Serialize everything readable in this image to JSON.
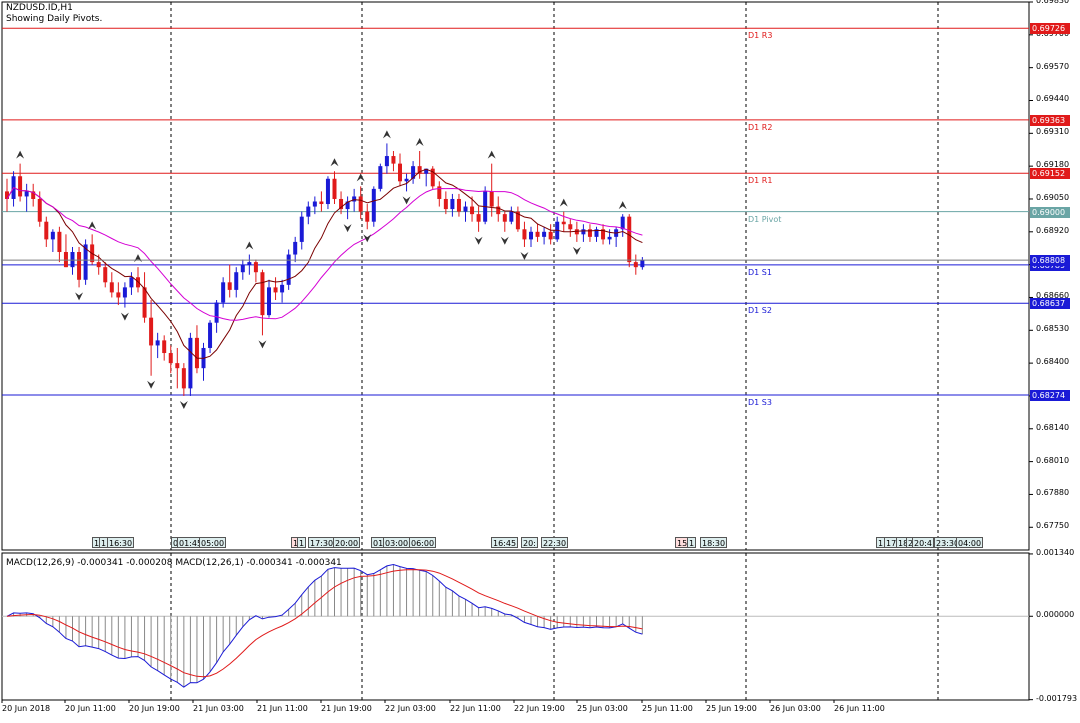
{
  "title": {
    "symbol": "NZDUSD.ID,H1",
    "subtitle": "Showing Daily Pivots."
  },
  "colors": {
    "bull": "#1a1ad6",
    "bear": "#e01a1a",
    "ma_fast": "#7a0000",
    "ma_slow": "#d400d4",
    "resistance": "#e01a1a",
    "support": "#1a1ad6",
    "pivot": "#6aa5a5",
    "macd_signal": "#e01a1a",
    "macd_line": "#1a1ad6",
    "grid": "#000000"
  },
  "price_axis": {
    "ymin": 0.6766,
    "ymax": 0.6983,
    "ticks": [
      "0.69830",
      "0.69700",
      "0.69570",
      "0.69440",
      "0.69310",
      "0.69180",
      "0.69050",
      "0.68920",
      "0.68790",
      "0.68660",
      "0.68530",
      "0.68400",
      "0.68270",
      "0.68140",
      "0.68010",
      "0.67880",
      "0.67750"
    ]
  },
  "pivots": [
    {
      "name": "D1 R3",
      "value": 0.69726,
      "tag": "0.69726",
      "kind": "resistance"
    },
    {
      "name": "D1 R2",
      "value": 0.69363,
      "tag": "0.69363",
      "kind": "resistance"
    },
    {
      "name": "D1 R1",
      "value": 0.69152,
      "tag": "0.69152",
      "kind": "resistance"
    },
    {
      "name": "D1 Pivot",
      "value": 0.69,
      "tag": "0.69000",
      "kind": "pivot"
    },
    {
      "name": "D1 S1",
      "value": 0.68789,
      "tag": "0.68789",
      "kind": "support"
    },
    {
      "name": "D1 S2",
      "value": 0.68637,
      "tag": "0.68637",
      "kind": "support"
    },
    {
      "name": "D1 S3",
      "value": 0.68274,
      "tag": "0.68274",
      "kind": "support"
    }
  ],
  "current_price": {
    "value": 0.68808,
    "tag": "0.68808"
  },
  "macd": {
    "label": "MACD(12,26,9) -0.000341 -0.000208 MACD(12,26,1) -0.000341 -0.000341",
    "ymin": -0.0018,
    "ymax": 0.00136,
    "ticks": [
      "0.001340",
      "0.000000",
      "-0.001793"
    ]
  },
  "time_axis": [
    "20 Jun 2018",
    "20 Jun 11:00",
    "20 Jun 19:00",
    "21 Jun 03:00",
    "21 Jun 11:00",
    "21 Jun 19:00",
    "22 Jun 03:00",
    "22 Jun 11:00",
    "22 Jun 19:00",
    "25 Jun 03:00",
    "25 Jun 11:00",
    "25 Jun 19:00",
    "26 Jun 03:00",
    "26 Jun 11:00"
  ],
  "events": [
    "1",
    "1",
    "16:30",
    "0",
    "01:45",
    "05:00",
    "1",
    "1",
    "17:30",
    "20:00",
    "01:",
    "03:00",
    "06:00",
    "16:45",
    "20:",
    "22:30",
    "15:",
    "1",
    "18:30",
    "1",
    "17",
    "18:",
    "2",
    "20:4",
    "23:30",
    "04:00"
  ],
  "chart_data": {
    "type": "candlestick",
    "title": "NZDUSD.ID,H1",
    "timeframe": "H1",
    "x_start": "20 Jun 2018 00:00",
    "candles": [
      [
        0.6908,
        0.6913,
        0.69,
        0.6905
      ],
      [
        0.6905,
        0.6916,
        0.6902,
        0.6914
      ],
      [
        0.6914,
        0.6919,
        0.6904,
        0.6906
      ],
      [
        0.6906,
        0.6911,
        0.69,
        0.6908
      ],
      [
        0.6908,
        0.6911,
        0.6902,
        0.6905
      ],
      [
        0.6905,
        0.6908,
        0.6894,
        0.6896
      ],
      [
        0.6896,
        0.6898,
        0.6886,
        0.6889
      ],
      [
        0.6889,
        0.6893,
        0.6884,
        0.6892
      ],
      [
        0.6892,
        0.6894,
        0.688,
        0.6884
      ],
      [
        0.6884,
        0.6891,
        0.6878,
        0.6878
      ],
      [
        0.6878,
        0.6886,
        0.6875,
        0.6884
      ],
      [
        0.6884,
        0.6886,
        0.687,
        0.6873
      ],
      [
        0.6873,
        0.6889,
        0.6871,
        0.6887
      ],
      [
        0.6887,
        0.6891,
        0.6879,
        0.688
      ],
      [
        0.688,
        0.6883,
        0.6875,
        0.6878
      ],
      [
        0.6878,
        0.688,
        0.687,
        0.6872
      ],
      [
        0.6872,
        0.6876,
        0.6866,
        0.6868
      ],
      [
        0.6868,
        0.6872,
        0.6863,
        0.6866
      ],
      [
        0.6866,
        0.6872,
        0.6862,
        0.687
      ],
      [
        0.687,
        0.6876,
        0.6867,
        0.6874
      ],
      [
        0.6874,
        0.6878,
        0.6868,
        0.687
      ],
      [
        0.687,
        0.6876,
        0.6856,
        0.6858
      ],
      [
        0.6858,
        0.6865,
        0.6835,
        0.6847
      ],
      [
        0.6847,
        0.6852,
        0.6842,
        0.6849
      ],
      [
        0.6849,
        0.6851,
        0.6841,
        0.6844
      ],
      [
        0.6844,
        0.6847,
        0.6836,
        0.684
      ],
      [
        0.684,
        0.6846,
        0.683,
        0.6838
      ],
      [
        0.6838,
        0.684,
        0.6827,
        0.683
      ],
      [
        0.683,
        0.6852,
        0.6827,
        0.685
      ],
      [
        0.685,
        0.6855,
        0.6836,
        0.6838
      ],
      [
        0.6838,
        0.6848,
        0.6833,
        0.6846
      ],
      [
        0.6846,
        0.6857,
        0.6844,
        0.6856
      ],
      [
        0.6856,
        0.6865,
        0.6852,
        0.6864
      ],
      [
        0.6864,
        0.6874,
        0.6862,
        0.6872
      ],
      [
        0.6872,
        0.6879,
        0.6866,
        0.6869
      ],
      [
        0.6869,
        0.6878,
        0.6866,
        0.6876
      ],
      [
        0.6876,
        0.6881,
        0.6873,
        0.6879
      ],
      [
        0.6879,
        0.6883,
        0.6875,
        0.688
      ],
      [
        0.688,
        0.6881,
        0.6872,
        0.6876
      ],
      [
        0.6876,
        0.6877,
        0.6851,
        0.6859
      ],
      [
        0.6859,
        0.6873,
        0.6858,
        0.687
      ],
      [
        0.687,
        0.6874,
        0.6865,
        0.6868
      ],
      [
        0.6868,
        0.6873,
        0.6864,
        0.6871
      ],
      [
        0.6871,
        0.6885,
        0.6869,
        0.6883
      ],
      [
        0.6883,
        0.689,
        0.688,
        0.6888
      ],
      [
        0.6888,
        0.69,
        0.6885,
        0.6898
      ],
      [
        0.6898,
        0.6904,
        0.6895,
        0.6902
      ],
      [
        0.6902,
        0.6906,
        0.6899,
        0.6904
      ],
      [
        0.6904,
        0.6908,
        0.69,
        0.6903
      ],
      [
        0.6903,
        0.6914,
        0.6901,
        0.6913
      ],
      [
        0.6913,
        0.6916,
        0.6903,
        0.6905
      ],
      [
        0.6905,
        0.6908,
        0.6899,
        0.6901
      ],
      [
        0.6901,
        0.6906,
        0.6897,
        0.6904
      ],
      [
        0.6904,
        0.6909,
        0.69,
        0.6906
      ],
      [
        0.6906,
        0.691,
        0.6897,
        0.69
      ],
      [
        0.69,
        0.6903,
        0.6893,
        0.6896
      ],
      [
        0.6896,
        0.691,
        0.6894,
        0.6909
      ],
      [
        0.6909,
        0.6919,
        0.6908,
        0.6918
      ],
      [
        0.6918,
        0.6927,
        0.6915,
        0.6922
      ],
      [
        0.6922,
        0.6924,
        0.6916,
        0.6919
      ],
      [
        0.6919,
        0.6923,
        0.691,
        0.6912
      ],
      [
        0.6912,
        0.6915,
        0.6908,
        0.6913
      ],
      [
        0.6913,
        0.692,
        0.6911,
        0.6918
      ],
      [
        0.6918,
        0.6924,
        0.6913,
        0.6915
      ],
      [
        0.6915,
        0.6917,
        0.691,
        0.6917
      ],
      [
        0.6917,
        0.6918,
        0.6909,
        0.691
      ],
      [
        0.691,
        0.6912,
        0.6902,
        0.6905
      ],
      [
        0.6905,
        0.6908,
        0.6899,
        0.6901
      ],
      [
        0.6901,
        0.6907,
        0.6898,
        0.6905
      ],
      [
        0.6905,
        0.6907,
        0.6898,
        0.69
      ],
      [
        0.69,
        0.6904,
        0.6896,
        0.6902
      ],
      [
        0.6902,
        0.6906,
        0.6896,
        0.6899
      ],
      [
        0.6899,
        0.6902,
        0.6892,
        0.6896
      ],
      [
        0.6896,
        0.691,
        0.6895,
        0.6908
      ],
      [
        0.6908,
        0.6919,
        0.6898,
        0.6902
      ],
      [
        0.6902,
        0.6906,
        0.6896,
        0.6899
      ],
      [
        0.6899,
        0.69,
        0.6892,
        0.6896
      ],
      [
        0.6896,
        0.6902,
        0.6895,
        0.69
      ],
      [
        0.69,
        0.6902,
        0.6892,
        0.6893
      ],
      [
        0.6893,
        0.6896,
        0.6886,
        0.6889
      ],
      [
        0.6889,
        0.6894,
        0.6886,
        0.6892
      ],
      [
        0.6892,
        0.6895,
        0.6888,
        0.689
      ],
      [
        0.689,
        0.6894,
        0.6887,
        0.6892
      ],
      [
        0.6892,
        0.6895,
        0.6887,
        0.6889
      ],
      [
        0.6889,
        0.6898,
        0.6888,
        0.6896
      ],
      [
        0.6896,
        0.69,
        0.6892,
        0.6895
      ],
      [
        0.6895,
        0.6897,
        0.689,
        0.6893
      ],
      [
        0.6893,
        0.6896,
        0.6888,
        0.6891
      ],
      [
        0.6891,
        0.6895,
        0.6888,
        0.6893
      ],
      [
        0.6893,
        0.6895,
        0.6888,
        0.689
      ],
      [
        0.689,
        0.6894,
        0.6888,
        0.6893
      ],
      [
        0.6893,
        0.6895,
        0.6887,
        0.6889
      ],
      [
        0.6889,
        0.6893,
        0.6887,
        0.689
      ],
      [
        0.689,
        0.6894,
        0.6886,
        0.6893
      ],
      [
        0.6893,
        0.6899,
        0.689,
        0.6898
      ],
      [
        0.6898,
        0.6899,
        0.6878,
        0.688
      ],
      [
        0.688,
        0.6883,
        0.6875,
        0.6878
      ],
      [
        0.6878,
        0.6882,
        0.6877,
        0.68808
      ]
    ]
  }
}
